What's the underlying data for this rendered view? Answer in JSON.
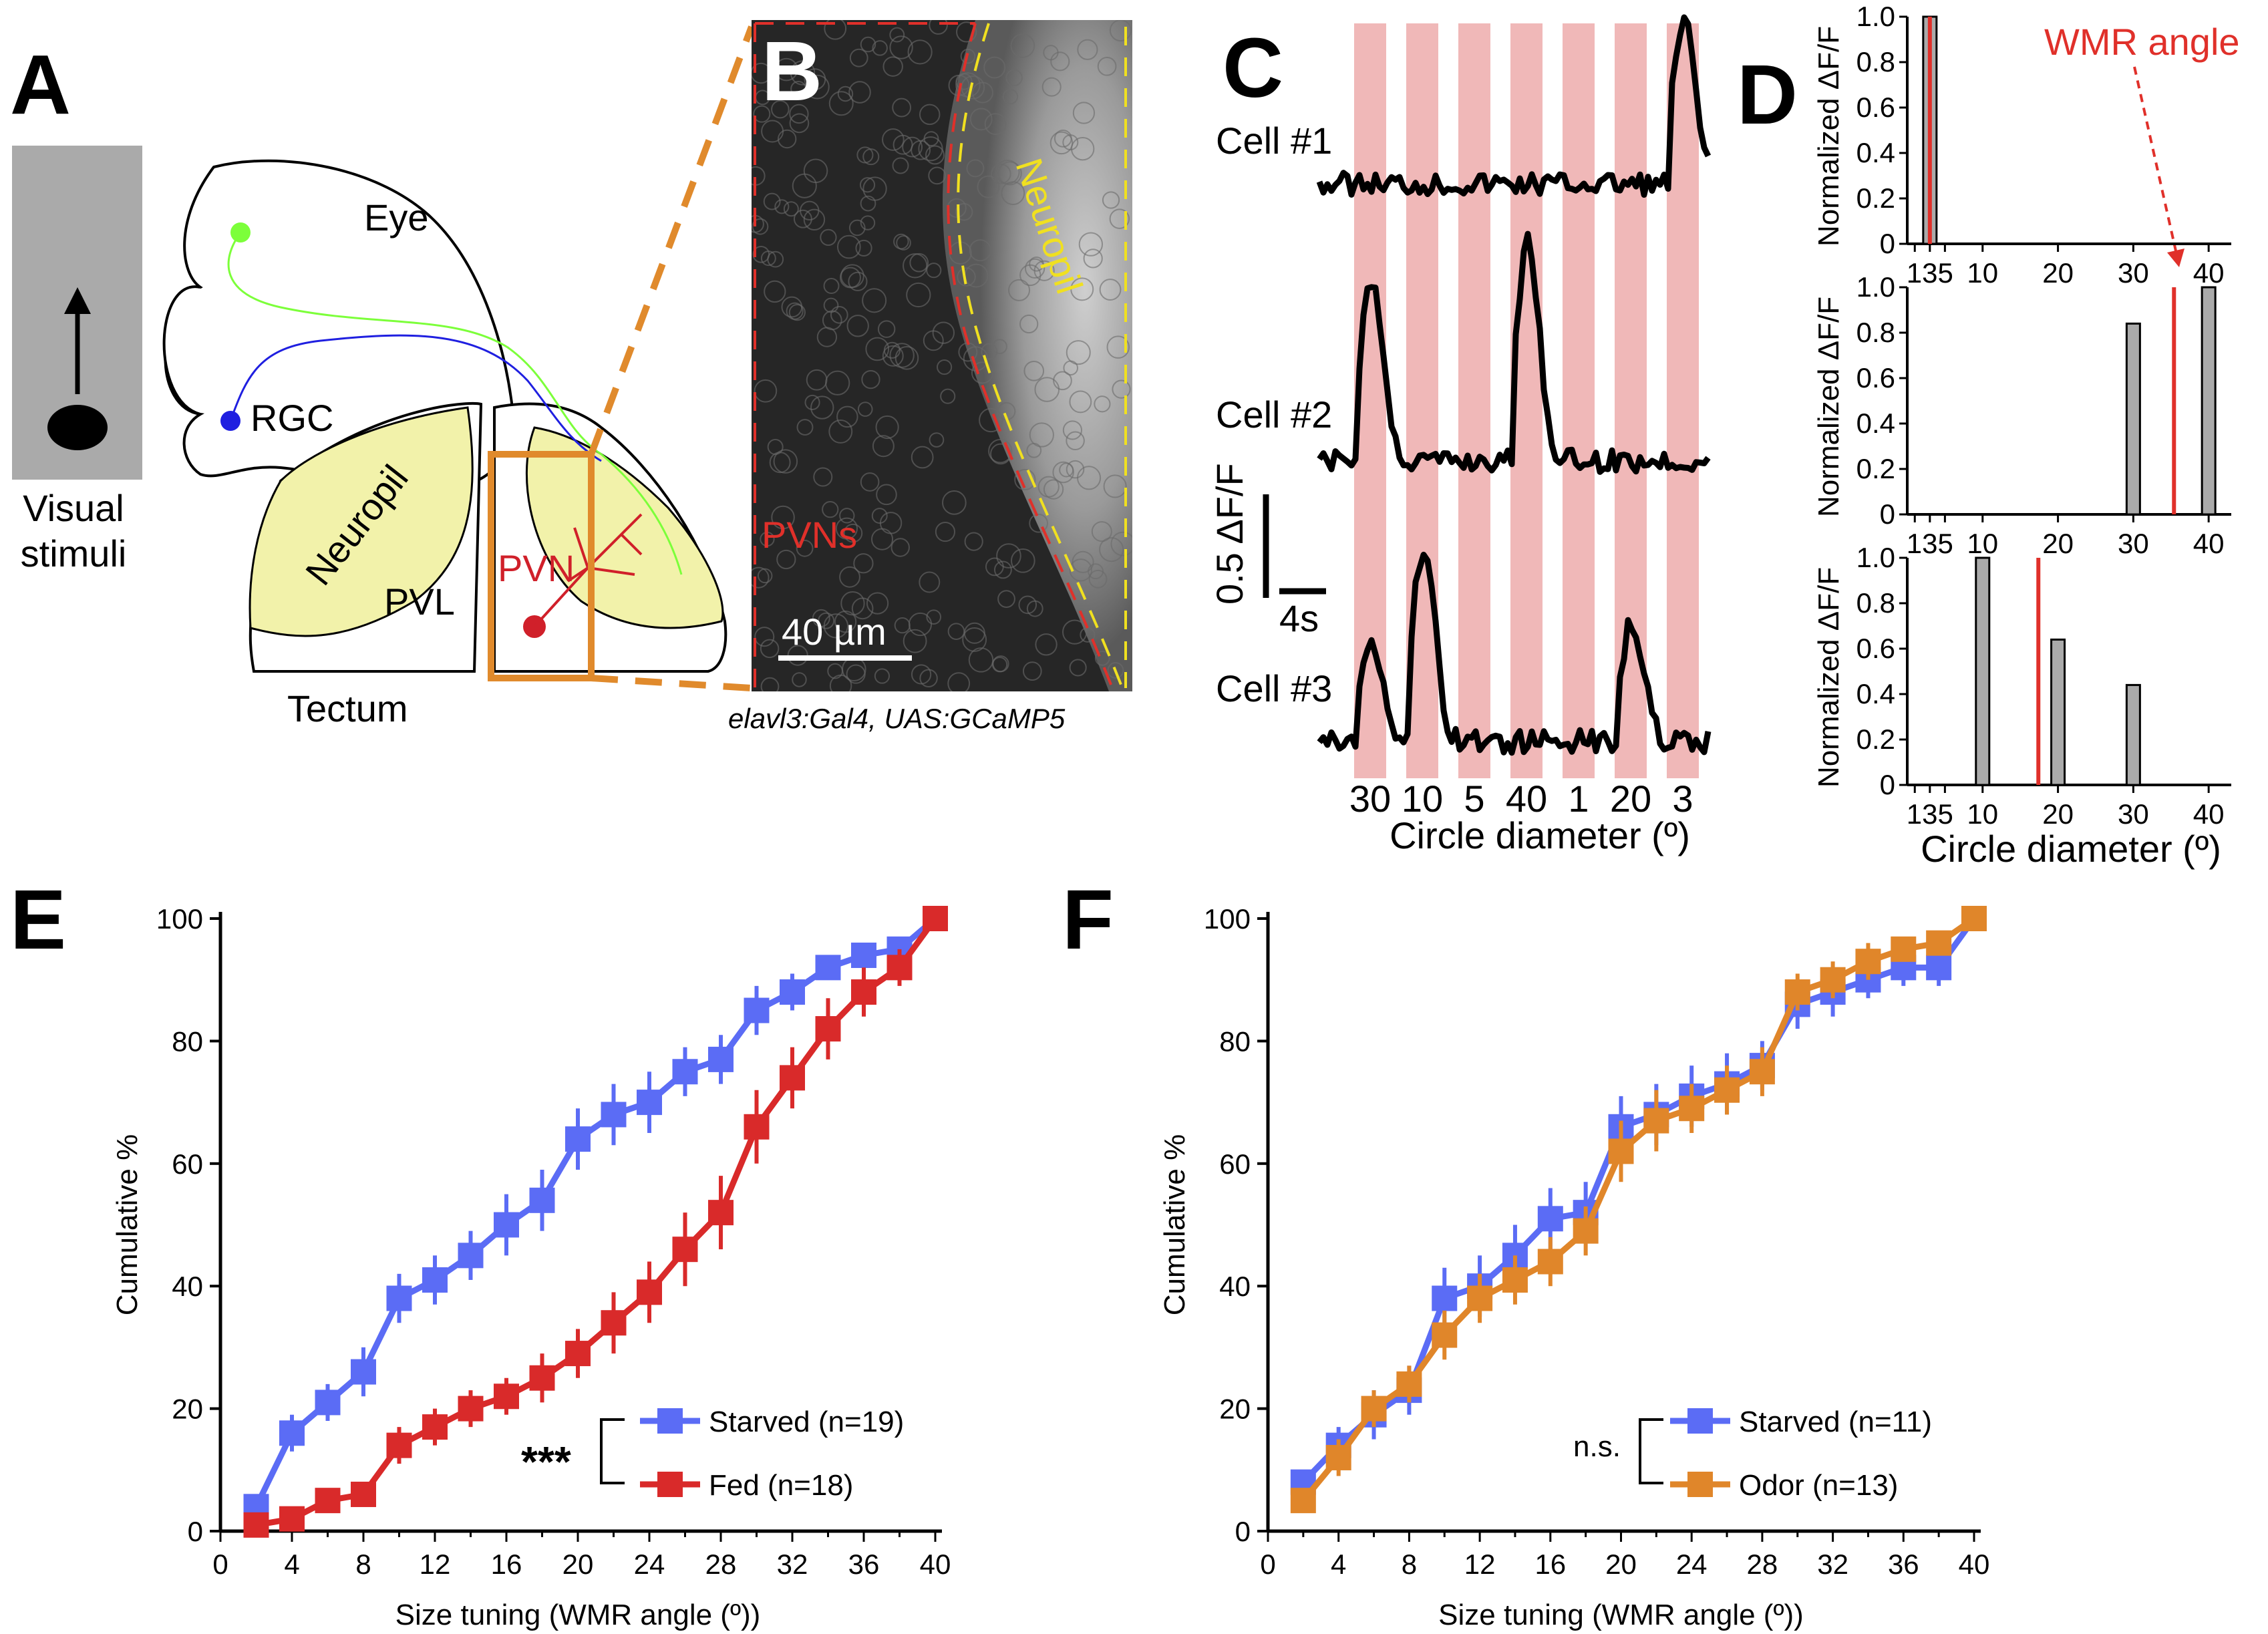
{
  "panels": {
    "A": {
      "label": "A",
      "stimulus_caption_line1": "Visual",
      "stimulus_caption_line2": "stimuli",
      "eye_label": "Eye",
      "rgc_label": "RGC",
      "neuropil_label": "Neuropil",
      "pvl_label": "PVL",
      "pvn_label": "PVN",
      "tectum_label": "Tectum",
      "colors": {
        "stimulus_bg": "#aaaaaa",
        "neuropil_fill": "#f2f2aa",
        "rgc_green": "#7cff3a",
        "rgc_blue": "#1f1fe0",
        "pvn_red": "#d0202a",
        "box_orange": "#e08a2c"
      }
    },
    "B": {
      "label": "B",
      "pvns_label": "PVNs",
      "neuropil_label": "Neuropil",
      "scalebar_label": "40 µm",
      "caption": "elavl3:Gal4, UAS:GCaMP5",
      "colors": {
        "pvns": "#e0302a",
        "neuropil": "#f0e020"
      }
    },
    "C": {
      "label": "C",
      "cells": [
        "Cell #1",
        "Cell #2",
        "Cell #3"
      ],
      "stimulus_order": [
        "30",
        "10",
        "5",
        "40",
        "1",
        "20",
        "3"
      ],
      "xlabel": "Circle diameter (º)",
      "scalebar_y": "0.5 ΔF/F",
      "scalebar_x": "4s",
      "colors": {
        "stim_band": "#f0b8b8",
        "trace": "#000000"
      }
    },
    "D": {
      "label": "D",
      "annotation": "WMR angle",
      "ylabel": "Normalized ΔF/F",
      "xlabel": "Circle diameter (º)",
      "xtick_labels": [
        "135",
        "10",
        "20",
        "30",
        "40"
      ],
      "ytick_labels": [
        "0",
        "0.2",
        "0.4",
        "0.6",
        "0.8",
        "1.0"
      ]
    },
    "E": {
      "label": "E",
      "significance": "***",
      "legend": [
        "Starved (n=19)",
        "Fed (n=18)"
      ]
    },
    "F": {
      "label": "F",
      "significance": "n.s.",
      "legend": [
        "Starved (n=11)",
        "Odor (n=13)"
      ]
    }
  },
  "chart_data": [
    {
      "panel": "D",
      "subplot": 1,
      "type": "bar",
      "x": [
        3
      ],
      "values": [
        1.0
      ],
      "wmr_angle": 3,
      "ylim": [
        0,
        1.0
      ],
      "xlim": [
        0,
        43
      ],
      "ylabel": "Normalized ΔF/F",
      "xlabel": ""
    },
    {
      "panel": "D",
      "subplot": 2,
      "type": "bar",
      "x": [
        30,
        40
      ],
      "values": [
        0.84,
        1.0
      ],
      "wmr_angle": 35.4,
      "ylim": [
        0,
        1.0
      ],
      "xlim": [
        0,
        43
      ],
      "ylabel": "Normalized ΔF/F",
      "xlabel": ""
    },
    {
      "panel": "D",
      "subplot": 3,
      "type": "bar",
      "x": [
        10,
        20,
        30
      ],
      "values": [
        1.0,
        0.64,
        0.44
      ],
      "wmr_angle": 17.4,
      "ylim": [
        0,
        1.0
      ],
      "xlim": [
        0,
        43
      ],
      "ylabel": "Normalized ΔF/F",
      "xlabel": "Circle diameter (º)"
    },
    {
      "panel": "E",
      "type": "line",
      "x": [
        2,
        4,
        6,
        8,
        10,
        12,
        14,
        16,
        18,
        20,
        22,
        24,
        26,
        28,
        30,
        32,
        34,
        36,
        38,
        40
      ],
      "series": [
        {
          "name": "Starved (n=19)",
          "color": "#5b6cf5",
          "values": [
            4,
            16,
            21,
            26,
            38,
            41,
            45,
            50,
            54,
            64,
            68,
            70,
            75,
            77,
            85,
            88,
            92,
            94,
            95,
            100
          ],
          "err": [
            2,
            3,
            3,
            4,
            4,
            4,
            4,
            5,
            5,
            5,
            5,
            5,
            4,
            4,
            4,
            3,
            2,
            2,
            2,
            1
          ]
        },
        {
          "name": "Fed (n=18)",
          "color": "#d92a2a",
          "values": [
            1,
            2,
            5,
            6,
            14,
            17,
            20,
            22,
            25,
            29,
            34,
            39,
            46,
            52,
            66,
            74,
            82,
            88,
            92,
            100
          ],
          "err": [
            1,
            1,
            2,
            2,
            3,
            3,
            3,
            3,
            4,
            4,
            5,
            5,
            6,
            6,
            6,
            5,
            5,
            4,
            3,
            1
          ]
        }
      ],
      "xlabel": "Size tuning (WMR angle (º))",
      "ylabel": "Cumulative %",
      "xlim": [
        0,
        40
      ],
      "ylim": [
        0,
        100
      ],
      "xticks": [
        0,
        4,
        8,
        12,
        16,
        20,
        24,
        28,
        32,
        36,
        40
      ],
      "yticks": [
        0,
        20,
        40,
        60,
        80,
        100
      ],
      "legend": "lower-right"
    },
    {
      "panel": "F",
      "type": "line",
      "x": [
        2,
        4,
        6,
        8,
        10,
        12,
        14,
        16,
        18,
        20,
        22,
        24,
        26,
        28,
        30,
        32,
        34,
        36,
        38,
        40
      ],
      "series": [
        {
          "name": "Starved (n=11)",
          "color": "#5b6cf5",
          "values": [
            8,
            14,
            19,
            23,
            38,
            40,
            45,
            51,
            52,
            66,
            68,
            71,
            73,
            76,
            86,
            88,
            90,
            92,
            92,
            100
          ],
          "err": [
            2,
            3,
            4,
            4,
            5,
            5,
            5,
            5,
            5,
            5,
            5,
            5,
            5,
            4,
            4,
            4,
            3,
            3,
            3,
            1
          ]
        },
        {
          "name": "Odor (n=13)",
          "color": "#e0862a",
          "values": [
            5,
            12,
            20,
            24,
            32,
            38,
            41,
            44,
            49,
            62,
            67,
            69,
            72,
            75,
            88,
            90,
            93,
            95,
            96,
            100
          ],
          "err": [
            2,
            3,
            3,
            3,
            4,
            4,
            4,
            4,
            4,
            5,
            5,
            4,
            4,
            4,
            3,
            3,
            3,
            2,
            2,
            1
          ]
        }
      ],
      "xlabel": "Size tuning (WMR angle (º))",
      "ylabel": "Cumulative %",
      "xlim": [
        0,
        40
      ],
      "ylim": [
        0,
        100
      ],
      "xticks": [
        0,
        4,
        8,
        12,
        16,
        20,
        24,
        28,
        32,
        36,
        40
      ],
      "yticks": [
        0,
        20,
        40,
        60,
        80,
        100
      ],
      "legend": "lower-right"
    }
  ]
}
